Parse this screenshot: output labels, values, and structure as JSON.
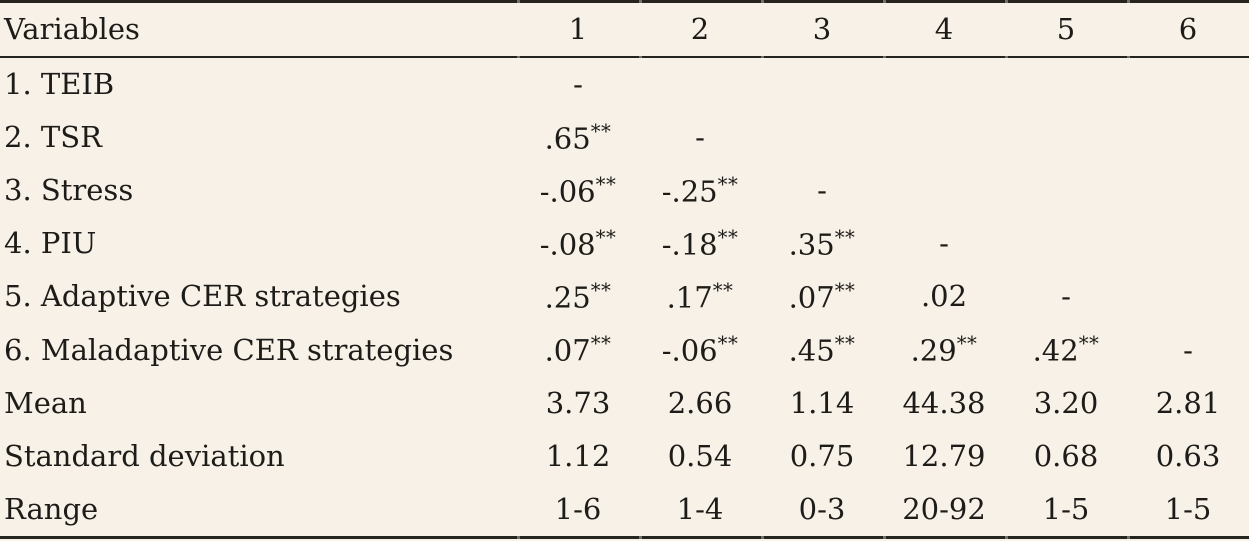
{
  "theme": {
    "background_color": "#f7f1e8",
    "text_color": "#1e1c19",
    "rule_color": "#26241f",
    "tick_color": "#8f8b83"
  },
  "table": {
    "type": "table",
    "columns": [
      "Variables",
      "1",
      "2",
      "3",
      "4",
      "5",
      "6"
    ],
    "rows": [
      {
        "label": "1. TEIB",
        "values": [
          "-",
          "",
          "",
          "",
          "",
          ""
        ]
      },
      {
        "label": "2. TSR",
        "values": [
          ".65**",
          "-",
          "",
          "",
          "",
          ""
        ]
      },
      {
        "label": "3. Stress",
        "values": [
          "-.06**",
          "-.25**",
          "-",
          "",
          "",
          ""
        ]
      },
      {
        "label": "4. PIU",
        "values": [
          "-.08**",
          "-.18**",
          ".35**",
          "-",
          "",
          ""
        ]
      },
      {
        "label": "5. Adaptive CER strategies",
        "values": [
          ".25**",
          ".17**",
          ".07**",
          ".02",
          "-",
          ""
        ]
      },
      {
        "label": "6. Maladaptive CER strategies",
        "values": [
          ".07**",
          "-.06**",
          ".45**",
          ".29**",
          ".42**",
          "-"
        ]
      },
      {
        "label": "Mean",
        "values": [
          "3.73",
          "2.66",
          "1.14",
          "44.38",
          "3.20",
          "2.81"
        ]
      },
      {
        "label": "Standard deviation",
        "values": [
          "1.12",
          "0.54",
          "0.75",
          "12.79",
          "0.68",
          "0.63"
        ]
      },
      {
        "label": "Range",
        "values": [
          "1-6",
          "1-4",
          "0-3",
          "20-92",
          "1-5",
          "1-5"
        ]
      }
    ],
    "significance_marker": "**"
  }
}
